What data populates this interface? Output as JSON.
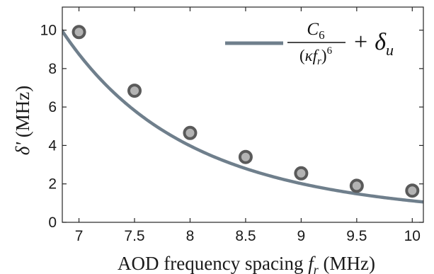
{
  "chart_data": {
    "type": "scatter",
    "title": "",
    "xlabel_main": "AOD frequency spacing ",
    "xlabel_var": "f",
    "xlabel_sub": "r",
    "xlabel_unit": " (MHz)",
    "ylabel_main": "δ'",
    "ylabel_unit": " (MHz)",
    "xlim": [
      6.85,
      10.1
    ],
    "ylim": [
      0,
      11.2
    ],
    "x_ticks": [
      7,
      7.5,
      8,
      8.5,
      9,
      9.5,
      10
    ],
    "x_tick_labels": [
      "7",
      "7.5",
      "8",
      "8.5",
      "9",
      "9.5",
      "10"
    ],
    "y_ticks": [
      0,
      2,
      4,
      6,
      8,
      10
    ],
    "y_tick_labels": [
      "0",
      "2",
      "4",
      "6",
      "8",
      "10"
    ],
    "grid": false,
    "legend_position": "top-right",
    "series": [
      {
        "kind": "points",
        "x": [
          7,
          7.5,
          8,
          8.5,
          9,
          9.5,
          10
        ],
        "y": [
          9.9,
          6.85,
          4.65,
          3.4,
          2.55,
          1.9,
          1.65
        ],
        "color": "#b3b3b3",
        "edge_color": "#5a5a5a"
      },
      {
        "kind": "fit",
        "legend": {
          "num_main": "C",
          "num_sub": "6",
          "den_open": "(",
          "den_kappa": "κ",
          "den_f": "f",
          "den_sub": "r",
          "den_close": ")",
          "den_pow": "6",
          "plus": "+",
          "delta": "δ",
          "delta_sub": "u"
        },
        "model": {
          "C6_scaled": 8.65,
          "kappa_ref": 7.0,
          "delta_u": 0.1
        },
        "color": "#6f7f8c"
      }
    ]
  }
}
